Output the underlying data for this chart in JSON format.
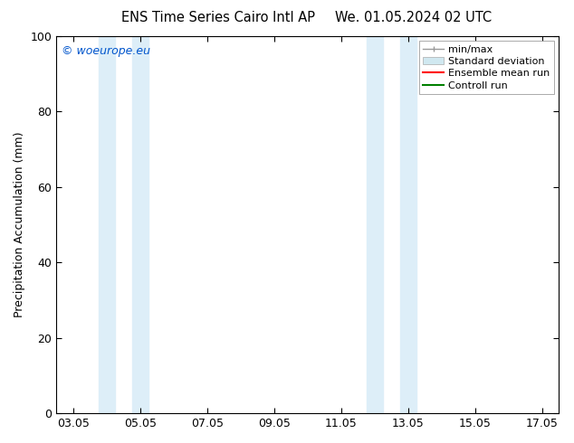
{
  "title_left": "ENS Time Series Cairo Intl AP",
  "title_right": "We. 01.05.2024 02 UTC",
  "ylabel": "Precipitation Accumulation (mm)",
  "watermark": "© woeurope.eu",
  "watermark_color": "#0055cc",
  "xlim_left": 2.5,
  "xlim_right": 17.5,
  "ylim_bottom": 0,
  "ylim_top": 100,
  "xtick_labels": [
    "03.05",
    "05.05",
    "07.05",
    "09.05",
    "11.05",
    "13.05",
    "15.05",
    "17.05"
  ],
  "xtick_positions": [
    3.0,
    5.0,
    7.0,
    9.0,
    11.0,
    13.0,
    15.0,
    17.0
  ],
  "ytick_labels": [
    "0",
    "20",
    "40",
    "60",
    "80",
    "100"
  ],
  "ytick_positions": [
    0,
    20,
    40,
    60,
    80,
    100
  ],
  "shaded_regions": [
    {
      "xmin": 3.75,
      "xmax": 4.25,
      "color": "#ddeef8"
    },
    {
      "xmin": 4.75,
      "xmax": 5.25,
      "color": "#ddeef8"
    },
    {
      "xmin": 11.75,
      "xmax": 12.25,
      "color": "#ddeef8"
    },
    {
      "xmin": 12.75,
      "xmax": 13.25,
      "color": "#ddeef8"
    }
  ],
  "legend_entries": [
    {
      "label": "min/max",
      "color": "#aaaaaa",
      "style": "minmax"
    },
    {
      "label": "Standard deviation",
      "color": "#d0e8f0",
      "style": "fill"
    },
    {
      "label": "Ensemble mean run",
      "color": "red",
      "style": "line"
    },
    {
      "label": "Controll run",
      "color": "green",
      "style": "line"
    }
  ],
  "background_color": "#ffffff",
  "font_size": 9,
  "title_font_size": 10.5
}
